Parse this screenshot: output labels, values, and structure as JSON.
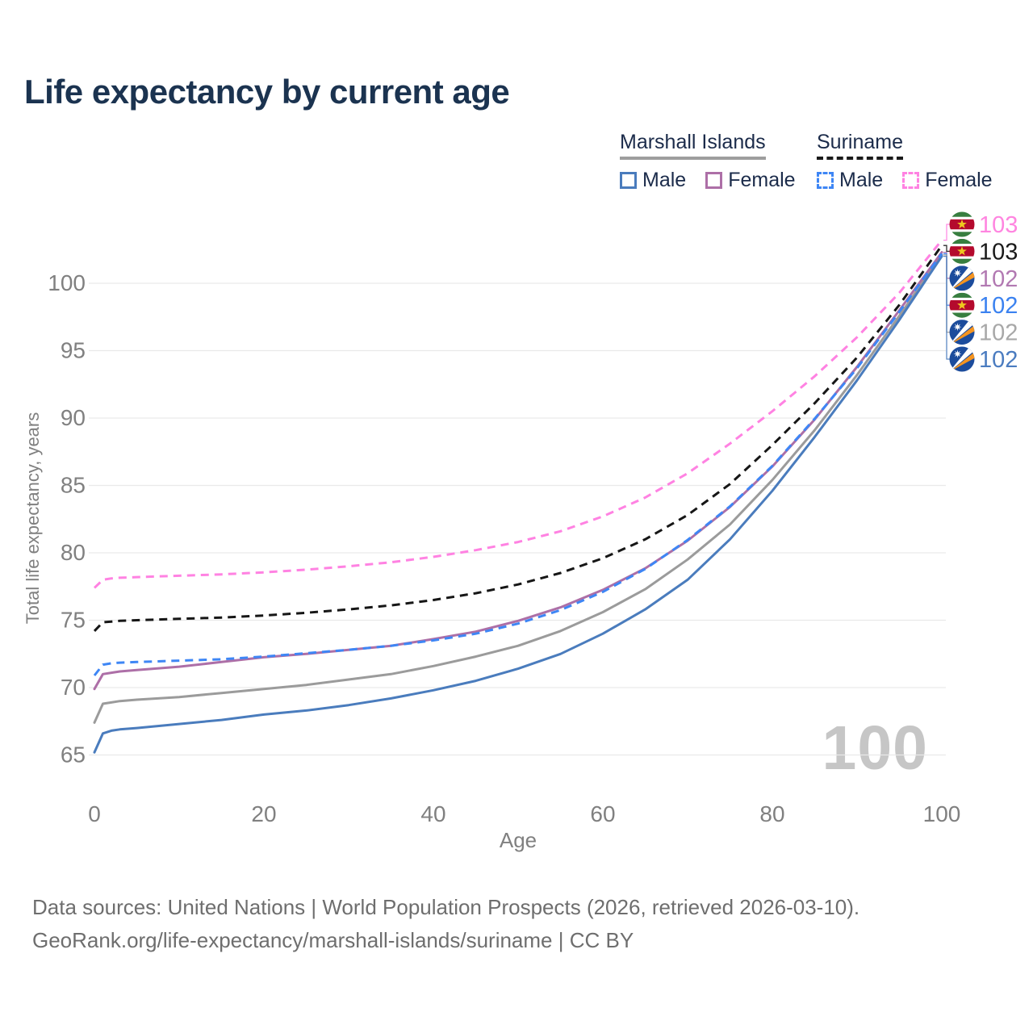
{
  "title": "Life expectancy by current age",
  "legend": {
    "marshall_islands": {
      "name": "Marshall Islands",
      "male": "Male",
      "female": "Female"
    },
    "suriname": {
      "name": "Suriname",
      "male": "Male",
      "female": "Female"
    }
  },
  "watermark": "100",
  "chart_data": {
    "type": "line",
    "title": "Life expectancy by current age",
    "xlabel": "Age",
    "ylabel": "Total life expectancy, years",
    "xticks": [
      0,
      20,
      40,
      60,
      80,
      100
    ],
    "yticks": [
      65,
      70,
      75,
      80,
      85,
      90,
      95,
      100
    ],
    "xlim": [
      0,
      100
    ],
    "ylim": [
      63.5,
      104
    ],
    "grid": true,
    "legend_position": "top-right",
    "x": [
      0,
      1,
      2,
      3,
      5,
      10,
      15,
      20,
      25,
      30,
      35,
      40,
      45,
      50,
      55,
      60,
      65,
      70,
      75,
      80,
      85,
      90,
      95,
      100
    ],
    "series": [
      {
        "id": "mi-total",
        "country": "Marshall Islands",
        "sex": "Both sexes",
        "color": "#9b9b9b",
        "dashed": false,
        "flag": "marshall-islands",
        "end_label": "102",
        "end_label_color": "#a8a8a8",
        "values": [
          67.4,
          68.8,
          68.9,
          69.0,
          69.1,
          69.3,
          69.6,
          69.9,
          70.2,
          70.6,
          71.0,
          71.6,
          72.3,
          73.1,
          74.2,
          75.6,
          77.3,
          79.5,
          82.1,
          85.4,
          89.1,
          93.2,
          97.6,
          102.1
        ]
      },
      {
        "id": "mi-male",
        "country": "Marshall Islands",
        "sex": "Male",
        "color": "#4a7cbd",
        "dashed": false,
        "flag": "marshall-islands",
        "end_label": "102",
        "end_label_color": "#4b7cc0",
        "values": [
          65.2,
          66.6,
          66.8,
          66.9,
          67.0,
          67.3,
          67.6,
          68.0,
          68.3,
          68.7,
          69.2,
          69.8,
          70.5,
          71.4,
          72.5,
          74.0,
          75.8,
          78.0,
          81.0,
          84.6,
          88.6,
          92.8,
          97.3,
          102.0
        ]
      },
      {
        "id": "mi-female",
        "country": "Marshall Islands",
        "sex": "Female",
        "color": "#ad6fa7",
        "dashed": false,
        "flag": "marshall-islands",
        "end_label": "102",
        "end_label_color": "#b279b2",
        "values": [
          69.9,
          71.0,
          71.1,
          71.2,
          71.3,
          71.55,
          71.9,
          72.25,
          72.5,
          72.8,
          73.1,
          73.6,
          74.15,
          74.95,
          75.95,
          77.25,
          78.85,
          80.9,
          83.4,
          86.4,
          89.9,
          93.8,
          98.0,
          102.3
        ]
      },
      {
        "id": "sur-male",
        "country": "Suriname",
        "sex": "Male",
        "color": "#3e86f5",
        "dashed": true,
        "flag": "suriname",
        "end_label": "102",
        "end_label_color": "#3b82f0",
        "values": [
          70.9,
          71.7,
          71.8,
          71.85,
          71.9,
          72.0,
          72.1,
          72.3,
          72.55,
          72.8,
          73.1,
          73.5,
          74.0,
          74.75,
          75.75,
          77.1,
          78.8,
          80.95,
          83.45,
          86.45,
          89.95,
          93.7,
          97.9,
          102.2
        ]
      },
      {
        "id": "sur-total",
        "country": "Suriname",
        "sex": "Both sexes",
        "color": "#161616",
        "dashed": true,
        "flag": "suriname",
        "end_label": "103",
        "end_label_color": "#1a1a1a",
        "values": [
          74.2,
          74.85,
          74.9,
          74.95,
          75.0,
          75.1,
          75.2,
          75.35,
          75.55,
          75.8,
          76.1,
          76.5,
          77.0,
          77.65,
          78.5,
          79.6,
          81.0,
          82.8,
          85.1,
          88.0,
          91.1,
          94.5,
          98.4,
          102.8
        ]
      },
      {
        "id": "sur-female",
        "country": "Suriname",
        "sex": "Female",
        "color": "#ff82e2",
        "dashed": true,
        "flag": "suriname",
        "end_label": "103",
        "end_label_color": "#ff85e0",
        "values": [
          77.4,
          78.0,
          78.1,
          78.15,
          78.2,
          78.3,
          78.4,
          78.55,
          78.75,
          79.0,
          79.3,
          79.7,
          80.2,
          80.8,
          81.6,
          82.7,
          84.1,
          85.9,
          88.1,
          90.5,
          93.1,
          96.0,
          99.3,
          103.2
        ]
      }
    ],
    "colors": {
      "grid": "#e9e9e9",
      "axis_text": "#808080",
      "watermark": "#c6c6c6",
      "flag_suriname": {
        "green": "#377e3f",
        "white": "#ffffff",
        "red": "#b40a2d",
        "star": "#eec81f"
      },
      "flag_marshall_islands": {
        "blue": "#1c4c9c",
        "orange": "#f5941f",
        "white": "#ffffff"
      }
    }
  },
  "footer": {
    "line1": "Data sources: United Nations | World Population Prospects (2026, retrieved 2026-03-10).",
    "line2": "GeoRank.org/life-expectancy/marshall-islands/suriname | CC BY"
  }
}
